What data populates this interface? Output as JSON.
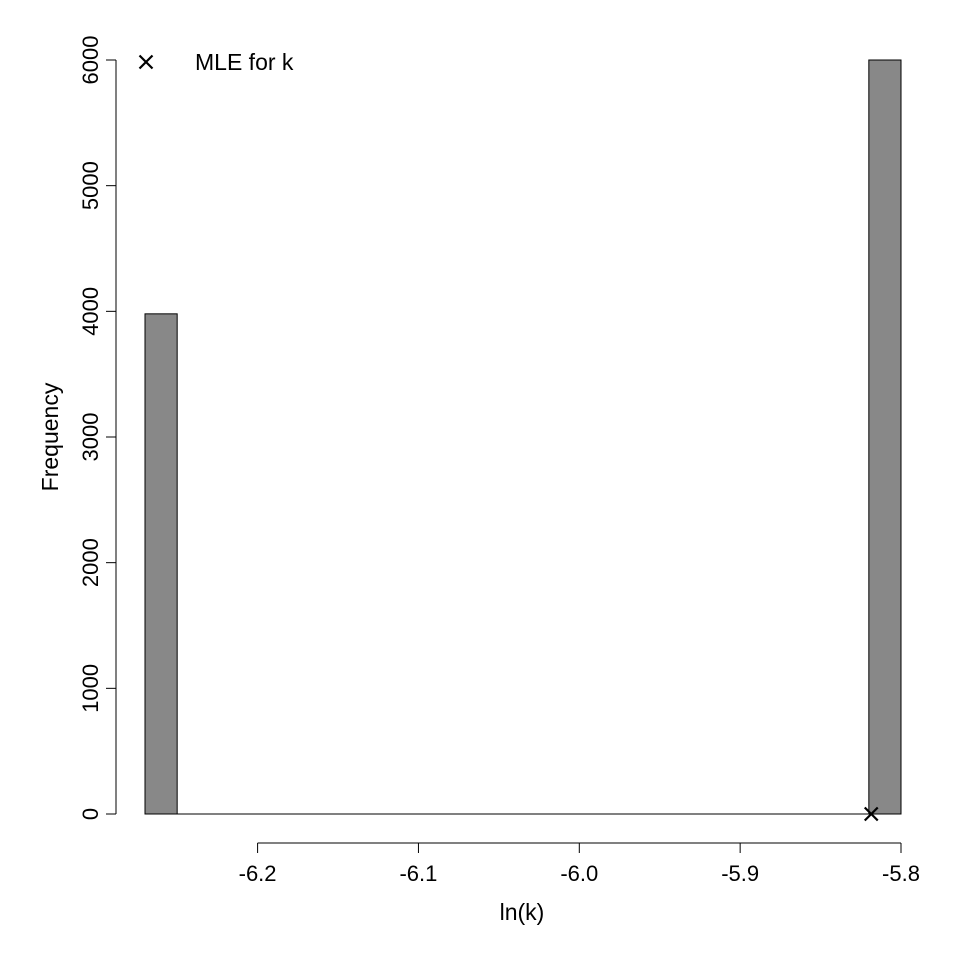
{
  "chart_data": {
    "type": "bar",
    "title": "",
    "xlabel": "ln(k)",
    "ylabel": "Frequency",
    "xlim": [
      -6.27,
      -5.8
    ],
    "ylim": [
      0,
      6000
    ],
    "x_ticks": [
      -6.2,
      -6.1,
      -6.0,
      -5.9,
      -5.8
    ],
    "x_tick_labels": [
      "-6.2",
      "-6.1",
      "-6.0",
      "-5.9",
      "-5.8"
    ],
    "y_ticks": [
      0,
      1000,
      2000,
      3000,
      4000,
      5000,
      6000
    ],
    "y_tick_labels": [
      "0",
      "1000",
      "2000",
      "3000",
      "4000",
      "5000",
      "6000"
    ],
    "bins": [
      {
        "x0": -6.27,
        "x1": -6.25,
        "count": 3980
      },
      {
        "x0": -5.82,
        "x1": -5.8,
        "count": 6000
      }
    ],
    "points": [
      {
        "name": "MLE for k",
        "x": -5.8185,
        "y": 0
      }
    ],
    "bar_color": "#888888",
    "marker": "cross",
    "legend": {
      "position": "top-left",
      "entries": [
        {
          "label": "MLE for k",
          "marker": "cross"
        }
      ]
    },
    "grid": false
  }
}
